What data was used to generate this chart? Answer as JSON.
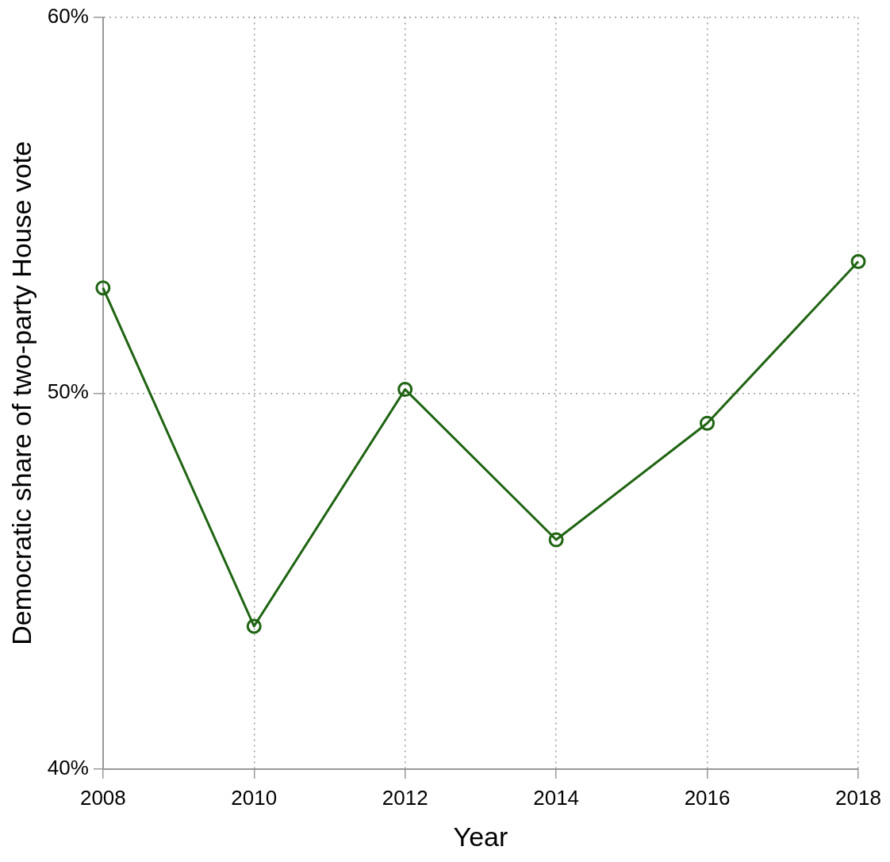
{
  "chart_data": {
    "type": "line",
    "xlabel": "Year",
    "ylabel": "Democratic share of two-party House vote",
    "x": [
      2008,
      2010,
      2012,
      2014,
      2016,
      2018
    ],
    "series": [
      {
        "color": "#1f6412",
        "values": [
          52.8,
          43.8,
          50.1,
          46.1,
          49.2,
          53.5
        ]
      }
    ],
    "xlim": [
      2008,
      2018
    ],
    "xticks": [
      2008,
      2010,
      2012,
      2014,
      2016,
      2018
    ],
    "ylim": [
      40,
      60
    ],
    "yticks": [
      {
        "value": 40,
        "label": "40%"
      },
      {
        "value": 50,
        "label": "50%"
      },
      {
        "value": 60,
        "label": "60%"
      }
    ],
    "grid": true,
    "marker": "circle",
    "line_style": "solid",
    "legend": false
  }
}
